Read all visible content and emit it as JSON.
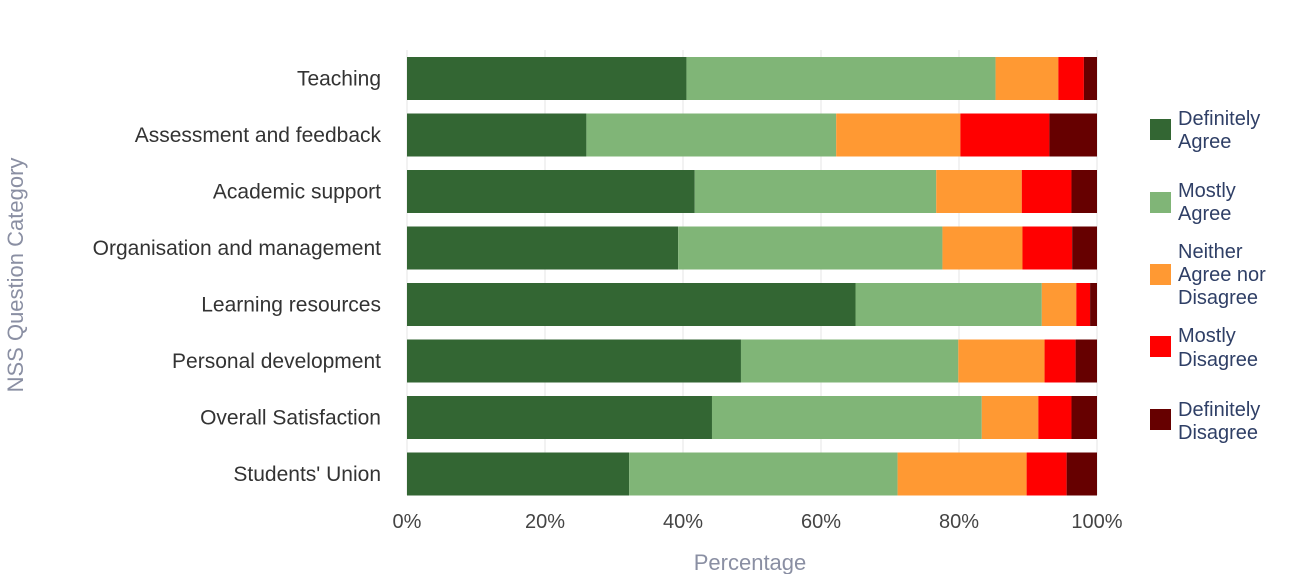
{
  "chart_data": {
    "type": "bar",
    "orientation": "horizontal",
    "stacked": "percent",
    "title": "",
    "xlabel": "Percentage",
    "ylabel": "NSS Question Category",
    "xlim": [
      0,
      100
    ],
    "xticks": [
      "0%",
      "20%",
      "40%",
      "60%",
      "80%",
      "100%"
    ],
    "grid": true,
    "legend_position": "right",
    "categories": [
      "Teaching",
      "Assessment and feedback",
      "Academic support",
      "Organisation and management",
      "Learning resources",
      "Personal development",
      "Overall Satisfaction",
      "Students' Union"
    ],
    "series": [
      {
        "name": "Definitely Agree",
        "legend_lines": [
          "Definitely",
          "Agree"
        ],
        "color": "#336633",
        "values": [
          40.5,
          26,
          41.7,
          39.3,
          65,
          48.4,
          44.2,
          32.2
        ]
      },
      {
        "name": "Mostly Agree",
        "legend_lines": [
          "Mostly",
          "Agree"
        ],
        "color": "#80b577",
        "values": [
          44.8,
          36.2,
          35,
          38.3,
          27,
          31.5,
          39.1,
          38.9
        ]
      },
      {
        "name": "Neither Agree nor Disagree",
        "legend_lines": [
          "Neither",
          "Agree nor",
          "Disagree"
        ],
        "color": "#ff9933",
        "values": [
          9.1,
          18,
          12.4,
          11.6,
          5,
          12.5,
          8.2,
          18.7
        ]
      },
      {
        "name": "Mostly Disagree",
        "legend_lines": [
          "Mostly",
          "Disagree"
        ],
        "color": "#ff0000",
        "values": [
          3.7,
          12.9,
          7.2,
          7.2,
          2,
          4.5,
          4.8,
          5.8
        ]
      },
      {
        "name": "Definitely Disagree",
        "legend_lines": [
          "Definitely",
          "Disagree"
        ],
        "color": "#660000",
        "values": [
          1.9,
          6.9,
          3.7,
          3.6,
          1,
          3.1,
          3.7,
          4.4
        ]
      }
    ]
  }
}
